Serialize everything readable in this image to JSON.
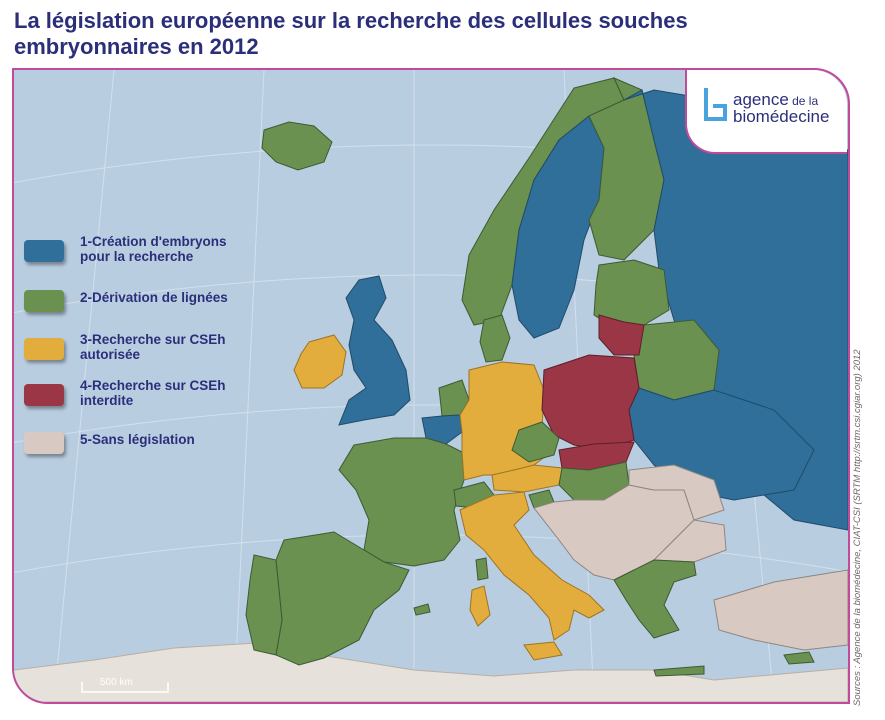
{
  "title": "La législation européenne sur la recherche des cellules souches embryonnaires en 2012",
  "logo": {
    "line1_main": "agence",
    "line1_small": " de la",
    "line2": "biomédecine",
    "icon": "agence-biomedecine-logo-icon",
    "color": "#4aa3dc"
  },
  "legend": [
    {
      "label": "1-Création  d'embryons\npour la recherche",
      "color": "#2f6f99"
    },
    {
      "label": "2-Dérivation de lignées",
      "color": "#6a9150"
    },
    {
      "label": "3-Recherche  sur  CSEh\nautorisée",
      "color": "#e2ad3c"
    },
    {
      "label": "4-Recherche  sur  CSEh\ninterdite",
      "color": "#9a3646"
    },
    {
      "label": "5-Sans législation",
      "color": "#d8cac3"
    }
  ],
  "scale_label": "500 km",
  "source": "Sources : Agence de la biomédecine, CIAT-CSI (SRTM http://srtm.csi.cgiar.org) 2012",
  "colors": {
    "sea": "#b9cde0",
    "frame": "#c04a9b",
    "title": "#2b2f7a",
    "africa": "#e6e1da"
  }
}
